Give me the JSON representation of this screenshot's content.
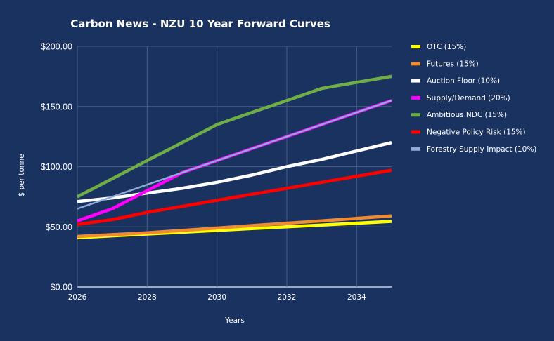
{
  "chart_data": {
    "type": "line",
    "title": "Carbon News - NZU 10 Year Forward Curves",
    "xlabel": "Years",
    "ylabel": "$ per tonne",
    "x": [
      2026,
      2027,
      2028,
      2029,
      2030,
      2031,
      2032,
      2033,
      2034,
      2035
    ],
    "xlim": [
      2026,
      2035
    ],
    "ylim": [
      0,
      200
    ],
    "x_ticks": [
      "2026",
      "2028",
      "2030",
      "2032",
      "2034"
    ],
    "x_tick_values": [
      2026,
      2028,
      2030,
      2032,
      2034
    ],
    "y_ticks": [
      "$0.00",
      "$50.00",
      "$100.00",
      "$150.00",
      "$200.00"
    ],
    "y_tick_values": [
      0,
      50,
      100,
      150,
      200
    ],
    "grid": true,
    "legend_position": "right",
    "series": [
      {
        "name": "OTC (15%)",
        "color": "#ffff00",
        "values": [
          41,
          42.5,
          44,
          45.5,
          47,
          48.5,
          50,
          51.5,
          53,
          54.5
        ]
      },
      {
        "name": "Futures (15%)",
        "color": "#ef8a35",
        "values": [
          42,
          43.5,
          45,
          47,
          49,
          51,
          53,
          55,
          57,
          59
        ]
      },
      {
        "name": "Auction Floor (10%)",
        "color": "#ffffff",
        "values": [
          71,
          74,
          78,
          82,
          87,
          93,
          100,
          106,
          113,
          120
        ]
      },
      {
        "name": "Supply/Demand (20%)",
        "color": "#ff00ff",
        "values": [
          55,
          65,
          80,
          95,
          105,
          115,
          125,
          135,
          145,
          155
        ]
      },
      {
        "name": "Ambitious NDC (15%)",
        "color": "#70ad47",
        "values": [
          75,
          90,
          105,
          120,
          135,
          145,
          155,
          165,
          170,
          175
        ]
      },
      {
        "name": "Negative Policy Risk (15%)",
        "color": "#ff0000",
        "values": [
          52,
          56,
          62,
          67,
          72,
          77,
          82,
          87,
          92,
          97
        ]
      },
      {
        "name": "Forestry Supply Impact (10%)",
        "color": "#8eaadb",
        "values": [
          65,
          75,
          85,
          95,
          105,
          115,
          125,
          135,
          145,
          155
        ]
      }
    ]
  }
}
